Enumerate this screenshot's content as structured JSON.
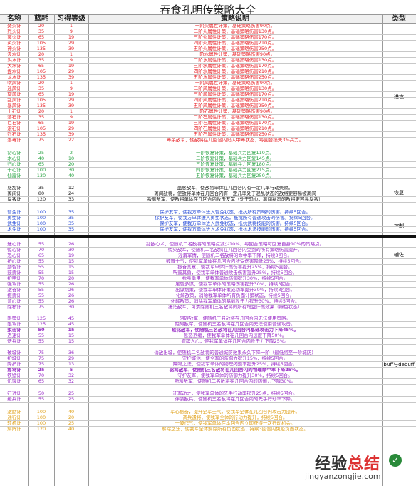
{
  "title": "吞食孔明传策略大全",
  "headers": {
    "name": "名称",
    "mp": "蓝耗",
    "level": "习得等级",
    "desc": "策略说明",
    "type": "类型"
  },
  "colors": {
    "red": "#e8262b",
    "green": "#2aa344",
    "dark": "#222222",
    "blue": "#2b4fd8",
    "purple": "#9b2fc8",
    "yellow": "#e0a21c"
  },
  "type_labels": {
    "attack": "进攻",
    "heal": "恢复",
    "control": "控制",
    "assist": "辅佐",
    "buff": "buff与debuff"
  },
  "rows": [
    {
      "name": "焚火计",
      "mp": "20",
      "level": "1",
      "desc": "一阶火属性计策，基础策略伤害90点。",
      "color": "red"
    },
    {
      "name": "烈火计",
      "mp": "35",
      "level": "9",
      "desc": "二阶火属性计策，基础策略伤害130点。",
      "color": "red"
    },
    {
      "name": "离火计",
      "mp": "65",
      "level": "19",
      "desc": "三阶火属性计策，基础策略伤害170点。",
      "color": "red"
    },
    {
      "name": "炎火计",
      "mp": "105",
      "level": "29",
      "desc": "四阶火属性计策，基础策略伤害210点。",
      "color": "red"
    },
    {
      "name": "神火计",
      "mp": "135",
      "level": "39",
      "desc": "五阶火属性计策，基础策略伤害250点。",
      "color": "red"
    },
    {
      "name": "汲水计",
      "mp": "20",
      "level": "1",
      "desc": "一阶水属性计策，基础策略伤害90点。",
      "color": "red"
    },
    {
      "name": "洪水计",
      "mp": "35",
      "level": "9",
      "desc": "二阶水属性计策，基础策略伤害130点。",
      "color": "red"
    },
    {
      "name": "大水计",
      "mp": "65",
      "level": "19",
      "desc": "三阶水属性计策，基础策略伤害170点。",
      "color": "red"
    },
    {
      "name": "盘水计",
      "mp": "105",
      "level": "29",
      "desc": "四阶水属性计策，基础策略伤害210点。",
      "color": "red"
    },
    {
      "name": "龙水计",
      "mp": "135",
      "level": "39",
      "desc": "五阶水属性计策，基础策略伤害250点。",
      "color": "red"
    },
    {
      "name": "吹风计",
      "mp": "20",
      "level": "1",
      "desc": "一阶风属性计策，基础策略伤害90点。",
      "color": "red"
    },
    {
      "name": "迷风计",
      "mp": "35",
      "level": "9",
      "desc": "二阶风属性计策，基础策略伤害130点。",
      "color": "red"
    },
    {
      "name": "旋风计",
      "mp": "65",
      "level": "19",
      "desc": "三阶风属性计策，基础策略伤害170点。",
      "color": "red"
    },
    {
      "name": "乱风计",
      "mp": "105",
      "level": "29",
      "desc": "四阶风属性计策，基础策略伤害210点。",
      "color": "red"
    },
    {
      "name": "暴风计",
      "mp": "135",
      "level": "39",
      "desc": "五阶风属性计策，基础策略伤害250点。",
      "color": "red"
    },
    {
      "name": "土石计",
      "mp": "20",
      "level": "1",
      "desc": "一阶石属性计策，基础策略伤害90点。",
      "color": "red"
    },
    {
      "name": "落石计",
      "mp": "35",
      "level": "9",
      "desc": "二阶石属性计策，基础策略伤害130点。",
      "color": "red"
    },
    {
      "name": "巨石计",
      "mp": "65",
      "level": "19",
      "desc": "三阶石属性计策，基础策略伤害170点。",
      "color": "red"
    },
    {
      "name": "滚石计",
      "mp": "105",
      "level": "29",
      "desc": "四阶石属性计策，基础策略伤害210点。",
      "color": "red"
    },
    {
      "name": "烈石计",
      "mp": "135",
      "level": "39",
      "desc": "五阶石属性计策，基础策略伤害250点。",
      "color": "red"
    },
    {
      "name": "落毒计",
      "mp": "75",
      "level": "22",
      "desc": "毒杀敌军，使敌将在几回合内陷入中毒状态，每回合损失3%兵力。",
      "color": "red"
    },
    {
      "name": "初心计",
      "mp": "25",
      "level": "2",
      "desc": "一阶恢复计策，基础兵力回复110点。",
      "color": "green"
    },
    {
      "name": "木心计",
      "mp": "40",
      "level": "10",
      "desc": "二阶恢复计策，基础兵力回复145点。",
      "color": "green"
    },
    {
      "name": "归心计",
      "mp": "65",
      "level": "20",
      "desc": "三阶恢复计策，基础兵力回复180点。",
      "color": "green"
    },
    {
      "name": "千心计",
      "mp": "100",
      "level": "30",
      "desc": "四阶恢复计策，基础兵力回复215点。",
      "color": "green"
    },
    {
      "name": "仙霞计",
      "mp": "130",
      "level": "40",
      "desc": "五阶恢复计策，基础兵力回复250点。",
      "color": "green"
    },
    {
      "name": "惑乱计",
      "mp": "35",
      "level": "12",
      "desc": "蛊惑敌军，使敌将单体在几回合内有一定几率行动失败。",
      "color": "dark"
    },
    {
      "name": "离间计",
      "mp": "80",
      "level": "24",
      "desc": "离间敌将，使敌将单体在几回合内有一定几率处于混乱状态的敌将更容易被离间",
      "color": "dark"
    },
    {
      "name": "反叛计",
      "mp": "120",
      "level": "33",
      "desc": "叛离敌军，使敌将单体在几回合内攻击友军（处于恐心，离间状态的敌将更容易反叛）",
      "color": "dark"
    },
    {
      "name": "智免计",
      "mp": "100",
      "level": "35",
      "desc": "保护友军，使我方单体进入智免状态，抵抗所有策略的伤害。持续5回合。",
      "color": "blue"
    },
    {
      "name": "勇免计",
      "mp": "100",
      "level": "35",
      "desc": "保护友军，使我方单体进入勇免状态，抵抗所有普通攻击的伤害。持续5回合。",
      "color": "blue"
    },
    {
      "name": "武免计",
      "mp": "100",
      "level": "35",
      "desc": "保护友军，使我方单体进入武免状态，抵抗武将技能的伤害。持续5回合。",
      "color": "blue"
    },
    {
      "name": "术免计",
      "mp": "100",
      "level": "35",
      "desc": "保护友军，使我方单体进入术免状态，抵抗术法技能的伤害。持续5回合。",
      "color": "blue"
    },
    {
      "name": "迷心计",
      "mp": "55",
      "level": "26",
      "desc": "乱敌心术，使随机二名敌将的策略点减少10%，每回合策略可回复自身10%的策略点。",
      "color": "purple"
    },
    {
      "name": "惊心计",
      "mp": "70",
      "level": "30",
      "desc": "传染敌军，使随机二名敌将在几回合内受到的所有策略伤害提升。",
      "color": "purple"
    },
    {
      "name": "恐心计",
      "mp": "65",
      "level": "19",
      "desc": "混淆军情，使随机二名敌将的命中率下降，持续3回合。",
      "color": "purple"
    },
    {
      "name": "护心计",
      "mp": "55",
      "level": "15",
      "desc": "鼓舞士气，使我军单体在几回合内所受伤害降低25%，持续5回合。",
      "color": "purple"
    },
    {
      "name": "励智计",
      "mp": "55",
      "level": "15",
      "desc": "振奋其意，使我军单体计策伤害提升25%，持续5回合。",
      "color": "purple"
    },
    {
      "name": "鼓勇计",
      "mp": "55",
      "level": "15",
      "desc": "听鼓其勇，使我军单体普通攻击伤害提升25%，持续5回合。",
      "color": "purple"
    },
    {
      "name": "护甲计",
      "mp": "70",
      "level": "20",
      "desc": "抗身勇甲，使我军单体防御提升30%，持续5回合。",
      "color": "purple"
    },
    {
      "name": "强攻计",
      "mp": "55",
      "level": "26",
      "desc": "足智多谋，使我军单体的策略伤害提升30%，持续3回合。",
      "color": "purple"
    },
    {
      "name": "激奋计",
      "mp": "55",
      "level": "26",
      "desc": "出谋划策，使我军单体计策成功率提升30%，持续3回合。",
      "color": "purple"
    },
    {
      "name": "振勇计",
      "mp": "55",
      "level": "26",
      "desc": "化解敌策，消除我军单体所有负面计策状态，持续5回合。",
      "color": "purple"
    },
    {
      "name": "清心计",
      "mp": "55",
      "level": "26",
      "desc": "化解敌策，消除我军单体的基础攻击力提升30%，持续5回合。",
      "color": "purple"
    },
    {
      "name": "除秽计",
      "mp": "75",
      "level": "30",
      "desc": "凄茫敌军，可清除随机三名敌将的所有增益计策效果（绿色状态）",
      "color": "purple"
    },
    {
      "name": "限策计",
      "mp": "125",
      "level": "45",
      "desc": "阻碍敌军，使随机三名敌将在几回合内无法使用策略。",
      "color": "purple"
    },
    {
      "name": "限攻计",
      "mp": "125",
      "level": "45",
      "desc": "阻碍敌军，使随机三名敌将在几回合内无法使用普通攻击。",
      "color": "purple"
    },
    {
      "name": "柔击计",
      "mp": "50",
      "level": "15",
      "desc": "软化敌军，使随机三名敌将在几回合内基础攻击力下降45%。",
      "color": "purple",
      "bold": true
    },
    {
      "name": "迟速计",
      "mp": "55",
      "level": "15",
      "desc": "怠怒迟缓，使我军单体在几回合内速度下降50%。",
      "color": "purple"
    },
    {
      "name": "怯兵计",
      "mp": "55",
      "level": "15",
      "desc": "崔踞人心，使我军单体在几回合内攻击力下降25%。",
      "color": "purple"
    },
    {
      "name": "破城计",
      "mp": "75",
      "level": "36",
      "desc": "诱敌出城，使随机二名敌将的普通城防效果永久下降一阶（最低将至一阶城防）",
      "color": "purple"
    },
    {
      "name": "护城计",
      "mp": "75",
      "level": "29",
      "desc": "守护城池，使全军的防御力提升15%，持续5回合。",
      "color": "purple"
    },
    {
      "name": "降护计",
      "mp": "75",
      "level": "13",
      "desc": "障眼之法，使我军单体的物理闪避率提升25%，持续5回合。",
      "color": "purple"
    },
    {
      "name": "疼驾计",
      "mp": "25",
      "level": "5",
      "desc": "驱驾敌军，使随机三名敌将在几回合内的物理命中率下降25%。",
      "color": "purple",
      "bold": true
    },
    {
      "name": "铁壁计",
      "mp": "70",
      "level": "32",
      "desc": "守护友军，使我军单体的防御力提升30%，持续5回合。",
      "color": "purple"
    },
    {
      "name": "饥饿计",
      "mp": "65",
      "level": "32",
      "desc": "断粮敌军，使随机二名敌将在几回合内的防御力下降30%。",
      "color": "purple"
    },
    {
      "name": "行进计",
      "mp": "50",
      "level": "25",
      "desc": "迁军动之，使我军单体的先手行动率提升25点，持续5回合。",
      "color": "purple"
    },
    {
      "name": "缓兵计",
      "mp": "55",
      "level": "25",
      "desc": "伴装敌兵，使随机三名敌将在几回合内的先手行动率下降。",
      "color": "purple"
    },
    {
      "name": "激励计",
      "mp": "100",
      "level": "40",
      "desc": "军心振奋，提升全军士气，使我军全体在几回合内攻击力提升。",
      "color": "yellow"
    },
    {
      "name": "通行计",
      "mp": "100",
      "level": "20",
      "desc": "调兵遣将，使我军全体的行动力提升，持续5回合。",
      "color": "yellow"
    },
    {
      "name": "转机计",
      "mp": "100",
      "level": "25",
      "desc": "一鼓作气，使我军单体在本回合内立即获得一次行动机会。",
      "color": "yellow"
    },
    {
      "name": "解阵计",
      "mp": "120",
      "level": "40",
      "desc": "解除之法，使我军全体解除所有负面状态，持续3回合内免疫负面状态。",
      "color": "yellow"
    }
  ]
}
